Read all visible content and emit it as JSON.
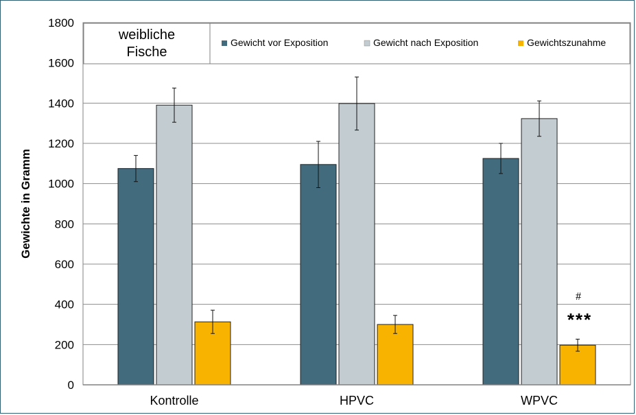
{
  "chart_data": {
    "type": "bar",
    "categories": [
      "Kontrolle",
      "HPVC",
      "WPVC"
    ],
    "series": [
      {
        "name": "Gewicht vor Exposition",
        "color": "#436b7e",
        "values": [
          1075,
          1095,
          1125
        ],
        "errors": [
          65,
          115,
          75
        ]
      },
      {
        "name": "Gewicht nach Exposition",
        "color": "#c2ccd1",
        "values": [
          1390,
          1398,
          1323
        ],
        "errors": [
          85,
          132,
          88
        ]
      },
      {
        "name": "Gewichtszunahme",
        "color": "#f8b300",
        "values": [
          313,
          300,
          197
        ],
        "errors": [
          58,
          45,
          30
        ]
      }
    ],
    "ylabel": "Gewichte in Gramm",
    "xlabel": "",
    "ylim": [
      0,
      1800
    ],
    "yticks": [
      "0",
      "200",
      "400",
      "600",
      "800",
      "1000",
      "1200",
      "1400",
      "1600",
      "1800"
    ],
    "grid": true,
    "legend_position": "top-right",
    "annotation_box": {
      "line1": "weibliche",
      "line2": "Fische"
    },
    "significance": {
      "category": "WPVC",
      "series": "Gewichtszunahme",
      "stars": "***",
      "hash": "#"
    }
  }
}
